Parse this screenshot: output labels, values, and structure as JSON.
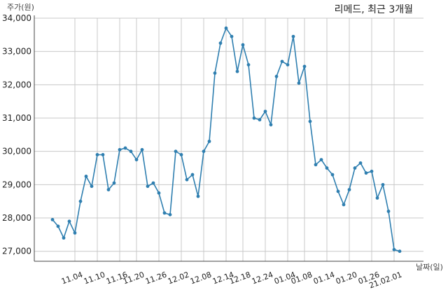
{
  "chart_data": {
    "type": "line",
    "title": "리메드, 최근 3개월",
    "ylabel": "주가(원)",
    "xlabel": "날짜(일)",
    "ylim": [
      26700,
      34000
    ],
    "yticks": [
      27000,
      28000,
      29000,
      30000,
      31000,
      32000,
      33000,
      34000
    ],
    "ytick_labels": [
      "27,000",
      "28,000",
      "29,000",
      "30,000",
      "31,000",
      "32,000",
      "33,000",
      "34,000"
    ],
    "grid": true,
    "line_color": "#2f7fb0",
    "xtick_labels": [
      "11.04",
      "11.10",
      "11.16",
      "11.20",
      "11.26",
      "12.02",
      "12.08",
      "12.14",
      "12.18",
      "12.24",
      "01.04",
      "01.08",
      "01.14",
      "01.20",
      "01.26",
      "21.02.01"
    ],
    "xtick_positions": [
      4,
      8,
      12,
      15,
      19,
      23,
      27,
      31,
      34,
      38,
      42,
      45,
      49,
      53,
      57,
      61
    ],
    "series": [
      {
        "values": [
          27950,
          27750,
          27400,
          27900,
          27550,
          28500,
          29250,
          28950,
          29900,
          29900,
          28850,
          29050,
          30050,
          30100,
          30000,
          29750,
          30050,
          28950,
          29050,
          28750,
          28150,
          28100,
          30000,
          29900,
          29150,
          29300,
          28650,
          30000,
          30300,
          32350,
          33250,
          33700,
          33450,
          32400,
          33200,
          32600,
          31000,
          30950,
          31200,
          30800,
          32250,
          32700,
          32600,
          33450,
          32050,
          32550,
          30900,
          29600,
          29750,
          29500,
          29300,
          28800,
          28400,
          28850,
          29500,
          29650,
          29350,
          29400,
          28600,
          29000,
          28200,
          27050,
          27000
        ]
      }
    ]
  }
}
